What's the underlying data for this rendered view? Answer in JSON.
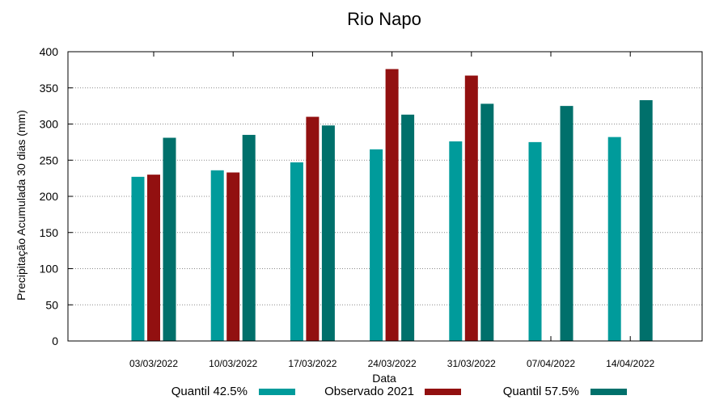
{
  "chart_data": {
    "type": "bar",
    "title": "Rio Napo",
    "xlabel": "Data",
    "ylabel": "Precipitação Acumulada 30 dias (mm)",
    "ylim": [
      0,
      400
    ],
    "yticks": [
      0,
      50,
      100,
      150,
      200,
      250,
      300,
      350,
      400
    ],
    "grid": true,
    "legend_position": "bottom",
    "categories": [
      "03/03/2022",
      "10/03/2022",
      "17/03/2022",
      "24/03/2022",
      "31/03/2022",
      "07/04/2022",
      "14/04/2022"
    ],
    "series": [
      {
        "name": "Quantil 42.5%",
        "color": "#009B9B",
        "values": [
          227,
          236,
          247,
          265,
          276,
          275,
          282
        ]
      },
      {
        "name": "Observado 2021",
        "color": "#921010",
        "values": [
          230,
          233,
          310,
          376,
          367,
          null,
          null
        ]
      },
      {
        "name": "Quantil 57.5%",
        "color": "#00706B",
        "values": [
          281,
          285,
          298,
          313,
          328,
          325,
          333
        ]
      }
    ]
  }
}
